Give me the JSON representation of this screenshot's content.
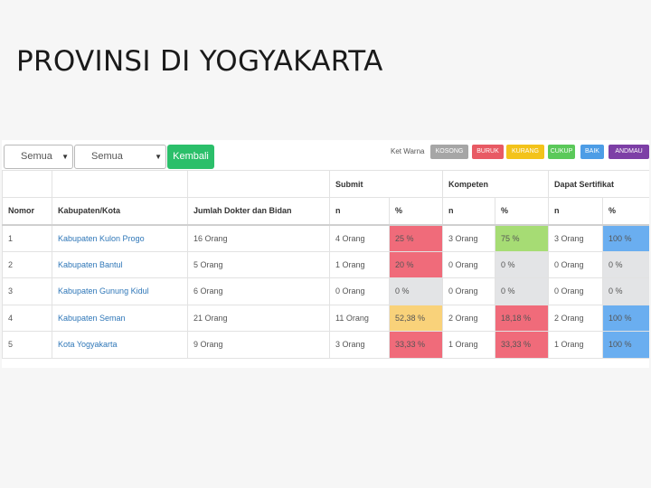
{
  "slide_title": "PROVINSI DI YOGYAKARTA",
  "toolbar": {
    "select1_value": "Semua",
    "select2_value": "Semua",
    "kembali_label": "Kembali",
    "legend_label": "Ket Warna",
    "legend": [
      {
        "label": "KOSONG",
        "color": "#a6a6a6"
      },
      {
        "label": "BURUK",
        "color": "#e85a64"
      },
      {
        "label": "KURANG",
        "color": "#f3c31a"
      },
      {
        "label": "CUKUP",
        "color": "#5bc95a"
      },
      {
        "label": "BAIK",
        "color": "#4d9de6"
      },
      {
        "label": "ANDMAU",
        "color": "#7d3fa6"
      }
    ]
  },
  "table": {
    "group_headers": {
      "submit": "Submit",
      "kompeten": "Kompeten",
      "sertifikat": "Dapat Sertifikat"
    },
    "columns": {
      "nomor": "Nomor",
      "kabupaten": "Kabupaten/Kota",
      "jumlah": "Jumlah Dokter dan Bidan",
      "n": "n",
      "pct": "%"
    },
    "rows": [
      {
        "nomor": "1",
        "kabupaten": "Kabupaten Kulon Progo",
        "jumlah": "16 Orang",
        "submit_n": "4 Orang",
        "submit_pct": "25 %",
        "submit_color": "#f06b7a",
        "kompeten_n": "3 Orang",
        "kompeten_pct": "75 %",
        "kompeten_color": "#a6dc74",
        "sertifikat_n": "3 Orang",
        "sertifikat_pct": "100 %",
        "sertifikat_color": "#6aaef0"
      },
      {
        "nomor": "2",
        "kabupaten": "Kabupaten Bantul",
        "jumlah": "5 Orang",
        "submit_n": "1 Orang",
        "submit_pct": "20 %",
        "submit_color": "#f06b7a",
        "kompeten_n": "0 Orang",
        "kompeten_pct": "0 %",
        "kompeten_color": "#e3e4e6",
        "sertifikat_n": "0 Orang",
        "sertifikat_pct": "0 %",
        "sertifikat_color": "#e3e4e6"
      },
      {
        "nomor": "3",
        "kabupaten": "Kabupaten Gunung Kidul",
        "jumlah": "6 Orang",
        "submit_n": "0 Orang",
        "submit_pct": "0 %",
        "submit_color": "#e3e4e6",
        "kompeten_n": "0 Orang",
        "kompeten_pct": "0 %",
        "kompeten_color": "#e3e4e6",
        "sertifikat_n": "0 Orang",
        "sertifikat_pct": "0 %",
        "sertifikat_color": "#e3e4e6"
      },
      {
        "nomor": "4",
        "kabupaten": "Kabupaten Seman",
        "jumlah": "21 Orang",
        "submit_n": "11 Orang",
        "submit_pct": "52,38 %",
        "submit_color": "#f9d27a",
        "kompeten_n": "2 Orang",
        "kompeten_pct": "18,18 %",
        "kompeten_color": "#f06b7a",
        "sertifikat_n": "2 Orang",
        "sertifikat_pct": "100 %",
        "sertifikat_color": "#6aaef0"
      },
      {
        "nomor": "5",
        "kabupaten": "Kota Yogyakarta",
        "jumlah": "9 Orang",
        "submit_n": "3 Orang",
        "submit_pct": "33,33 %",
        "submit_color": "#f06b7a",
        "kompeten_n": "1 Orang",
        "kompeten_pct": "33,33 %",
        "kompeten_color": "#f06b7a",
        "sertifikat_n": "1 Orang",
        "sertifikat_pct": "100 %",
        "sertifikat_color": "#6aaef0"
      }
    ]
  }
}
